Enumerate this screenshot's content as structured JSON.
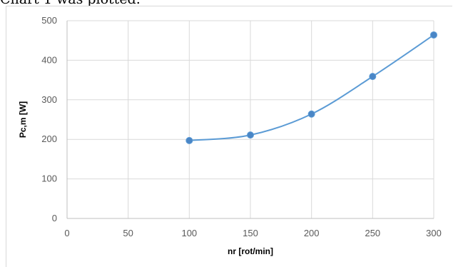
{
  "caption": "Chart 1 was plotted.",
  "chart_data": {
    "type": "scatter",
    "title": "",
    "xlabel": "nr [rot/min]",
    "ylabel": "Pc,m [W]",
    "xlim": [
      0,
      300
    ],
    "ylim": [
      0,
      500
    ],
    "xticks": [
      0,
      50,
      100,
      150,
      200,
      250,
      300
    ],
    "yticks": [
      0,
      100,
      200,
      300,
      400,
      500
    ],
    "grid": true,
    "smooth_line": true,
    "series": [
      {
        "x": [
          100,
          150,
          200,
          250,
          300
        ],
        "y": [
          197,
          211,
          264,
          359,
          464
        ]
      }
    ],
    "colors": {
      "series": "#5b9bd5",
      "marker": "#4a86c6",
      "grid": "#d9d9d9",
      "axis": "#bfbfbf"
    }
  }
}
